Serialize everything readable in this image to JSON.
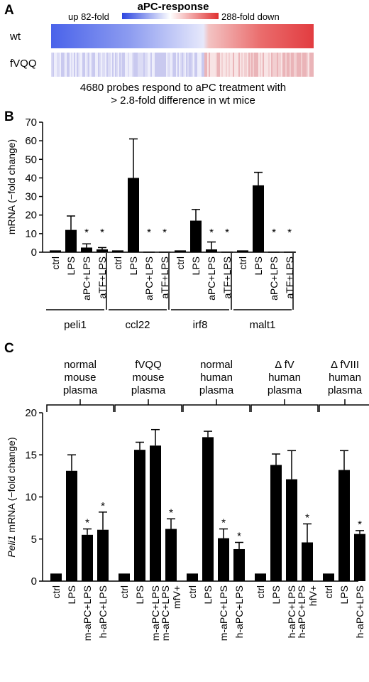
{
  "panels": {
    "a": "A",
    "b": "B",
    "c": "C"
  },
  "heatmap": {
    "title": "aPC-response",
    "scale_left": "up 82-fold",
    "scale_right": "288-fold down",
    "rows": [
      "wt",
      "fVQQ"
    ],
    "caption_line1": "4680 probes respond to aPC treatment with",
    "caption_line2": "> 2.8-fold difference in wt mice",
    "colors": {
      "up": "#3a56e8",
      "down": "#e8414a",
      "mid": "#ffffff"
    }
  },
  "chart_data": [
    {
      "type": "bar",
      "panel": "B",
      "ylabel": "mRNA (−fold change)",
      "ylim": [
        0,
        70
      ],
      "yticks": [
        0,
        10,
        20,
        30,
        40,
        50,
        60,
        70
      ],
      "groups": [
        {
          "name": "peli1",
          "categories": [
            "ctrl",
            "LPS",
            "aPC+LPS",
            "aTF+LPS"
          ],
          "values": [
            1,
            12,
            2.5,
            1.5
          ],
          "errors": [
            0,
            7.5,
            2,
            1
          ],
          "significant": [
            false,
            false,
            true,
            true
          ]
        },
        {
          "name": "ccl22",
          "categories": [
            "ctrl",
            "LPS",
            "aPC+LPS",
            "aTF+LPS"
          ],
          "values": [
            1,
            40,
            0.3,
            0.3
          ],
          "errors": [
            0,
            21,
            0,
            0
          ],
          "significant": [
            false,
            false,
            true,
            true
          ]
        },
        {
          "name": "irf8",
          "categories": [
            "ctrl",
            "LPS",
            "aPC+LPS",
            "aTF+LPS"
          ],
          "values": [
            1,
            17,
            1.5,
            0.3
          ],
          "errors": [
            0,
            6,
            4,
            0
          ],
          "significant": [
            false,
            false,
            true,
            true
          ]
        },
        {
          "name": "malt1",
          "categories": [
            "ctrl",
            "LPS",
            "aPC+LPS",
            "aTF+LPS"
          ],
          "values": [
            1,
            36,
            0.3,
            0.3
          ],
          "errors": [
            0,
            7,
            0,
            0
          ],
          "significant": [
            false,
            false,
            true,
            true
          ]
        }
      ]
    },
    {
      "type": "bar",
      "panel": "C",
      "ylabel_italic": "Peli1",
      "ylabel_rest": " mRNA (−fold change)",
      "ylim": [
        0,
        20
      ],
      "yticks": [
        0,
        5,
        10,
        15,
        20
      ],
      "groups": [
        {
          "name_lines": [
            "normal",
            "mouse",
            "plasma"
          ],
          "categories": [
            "ctrl",
            "LPS",
            "m-aPC+LPS",
            "h-aPC+LPS"
          ],
          "values": [
            0.9,
            13.1,
            5.5,
            6.1
          ],
          "errors": [
            0,
            1.9,
            0.7,
            2.1
          ],
          "significant": [
            false,
            false,
            true,
            true
          ]
        },
        {
          "name_lines": [
            "fVQQ",
            "mouse",
            "plasma"
          ],
          "categories": [
            "ctrl",
            "LPS",
            "m-aPC+LPS",
            "mfV+ m-aPC+LPS"
          ],
          "values": [
            0.9,
            15.6,
            16.1,
            6.2
          ],
          "errors": [
            0,
            0.9,
            1.9,
            1.2
          ],
          "significant": [
            false,
            false,
            false,
            true
          ]
        },
        {
          "name_lines": [
            "normal",
            "human",
            "plasma"
          ],
          "categories": [
            "ctrl",
            "LPS",
            "m-aPC+LPS",
            "h-aPC+LPS"
          ],
          "values": [
            0.9,
            17.1,
            5.1,
            3.8
          ],
          "errors": [
            0,
            0.7,
            1.1,
            0.8
          ],
          "significant": [
            false,
            false,
            true,
            true
          ]
        },
        {
          "name_lines": [
            "Δ fV",
            "human",
            "plasma"
          ],
          "categories": [
            "ctrl",
            "LPS",
            "h-aPC+LPS",
            "hfV+ h-aPC+LPS"
          ],
          "values": [
            0.9,
            13.8,
            12.1,
            4.6
          ],
          "errors": [
            0,
            1.3,
            3.4,
            2.2
          ],
          "significant": [
            false,
            false,
            false,
            true
          ]
        },
        {
          "name_lines": [
            "Δ fVIII",
            "human",
            "plasma"
          ],
          "categories": [
            "ctrl",
            "LPS",
            "h-aPC+LPS"
          ],
          "values": [
            0.9,
            13.2,
            5.6
          ],
          "errors": [
            0,
            2.3,
            0.4
          ],
          "significant": [
            false,
            false,
            true
          ]
        }
      ]
    }
  ],
  "significance_mark": "*"
}
